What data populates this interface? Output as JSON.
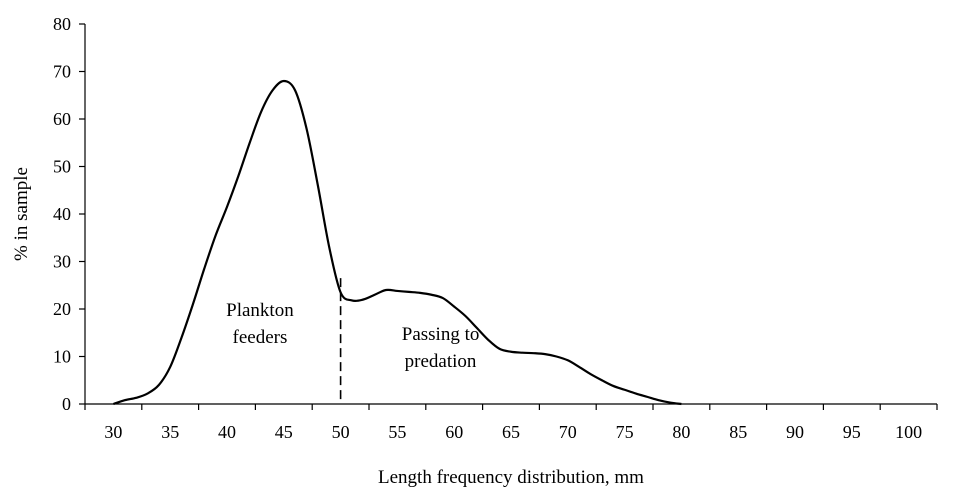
{
  "chart_data": {
    "type": "line",
    "title": "",
    "xlabel": "Length frequency distribution, mm",
    "ylabel": "% in sample",
    "xlim": [
      27.5,
      102.5
    ],
    "ylim": [
      0,
      80
    ],
    "xticks": [
      30,
      35,
      40,
      45,
      50,
      55,
      60,
      65,
      70,
      75,
      80,
      85,
      90,
      95,
      100
    ],
    "yticks": [
      0,
      10,
      20,
      30,
      40,
      50,
      60,
      70,
      80
    ],
    "grid": false,
    "legend": "none",
    "series": [
      {
        "x": [
          30,
          31,
          32,
          33,
          34,
          35,
          36,
          37,
          38,
          39,
          40,
          41,
          42,
          43,
          44,
          45,
          46,
          47,
          48,
          49,
          50,
          51,
          52,
          53,
          54,
          55,
          56,
          57,
          58,
          59,
          60,
          61,
          62,
          63,
          64,
          65,
          66,
          67,
          68,
          69,
          70,
          71,
          72,
          73,
          74,
          75,
          76,
          77,
          78,
          79,
          80
        ],
        "y": [
          0,
          0.8,
          1.3,
          2.2,
          4,
          7.8,
          14,
          21,
          28.5,
          35.5,
          41.5,
          48,
          55,
          61.5,
          66,
          68,
          66,
          58,
          46,
          33,
          23.5,
          21.8,
          22,
          23,
          24,
          23.8,
          23.6,
          23.4,
          23,
          22.3,
          20.5,
          18.5,
          16,
          13.5,
          11.6,
          11,
          10.8,
          10.7,
          10.5,
          10,
          9.2,
          7.8,
          6.3,
          5,
          3.8,
          3,
          2.2,
          1.5,
          0.8,
          0.3,
          0
        ],
        "color": "#000000"
      }
    ],
    "divider": {
      "x": 50,
      "y_top": 26.5,
      "style": "dashed"
    },
    "annotations": [
      {
        "lines": [
          "Plankton",
          "feeders"
        ],
        "x": 42.9,
        "y": 18.5
      },
      {
        "lines": [
          "Passing to",
          "predation"
        ],
        "x": 58.8,
        "y": 13.5
      }
    ]
  }
}
